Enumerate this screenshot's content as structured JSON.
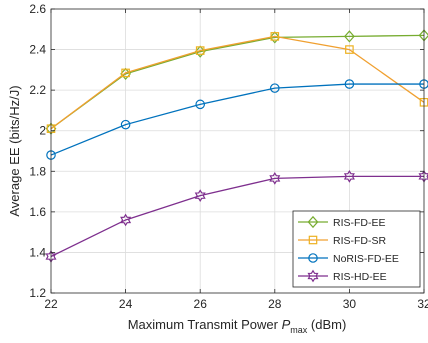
{
  "chart_data": {
    "type": "line",
    "xlabel": {
      "prefix": "Maximum Transmit Power ",
      "symbol": "P",
      "subscript": "max",
      "suffix": " (dBm)"
    },
    "ylabel": "Average EE (bits/Hz/J)",
    "x": [
      22,
      24,
      26,
      28,
      30,
      32
    ],
    "xlim": [
      22,
      32
    ],
    "ylim": [
      1.2,
      2.6
    ],
    "xticks": [
      22,
      24,
      26,
      28,
      30,
      32
    ],
    "yticks": [
      1.2,
      1.4,
      1.6,
      1.8,
      2.0,
      2.2,
      2.4,
      2.6
    ],
    "ytick_labels": [
      "1.2",
      "1.4",
      "1.6",
      "1.8",
      "2",
      "2.2",
      "2.4",
      "2.6"
    ],
    "grid": true,
    "legend_position": "bottom-right",
    "series": [
      {
        "name": "RIS-FD-EE",
        "color": "#77ac30",
        "marker": "diamond",
        "values": [
          2.01,
          2.28,
          2.39,
          2.46,
          2.465,
          2.47
        ]
      },
      {
        "name": "RIS-FD-SR",
        "color": "#edb120",
        "line_color": "#f0a030",
        "marker": "square",
        "values": [
          2.01,
          2.285,
          2.395,
          2.465,
          2.4,
          2.14
        ]
      },
      {
        "name": "NoRIS-FD-EE",
        "color": "#0072bd",
        "marker": "circle",
        "values": [
          1.88,
          2.03,
          2.13,
          2.21,
          2.23,
          2.23
        ]
      },
      {
        "name": "RIS-HD-EE",
        "color": "#7e2f8e",
        "marker": "hexagram",
        "values": [
          1.38,
          1.56,
          1.68,
          1.765,
          1.775,
          1.775
        ]
      }
    ]
  }
}
